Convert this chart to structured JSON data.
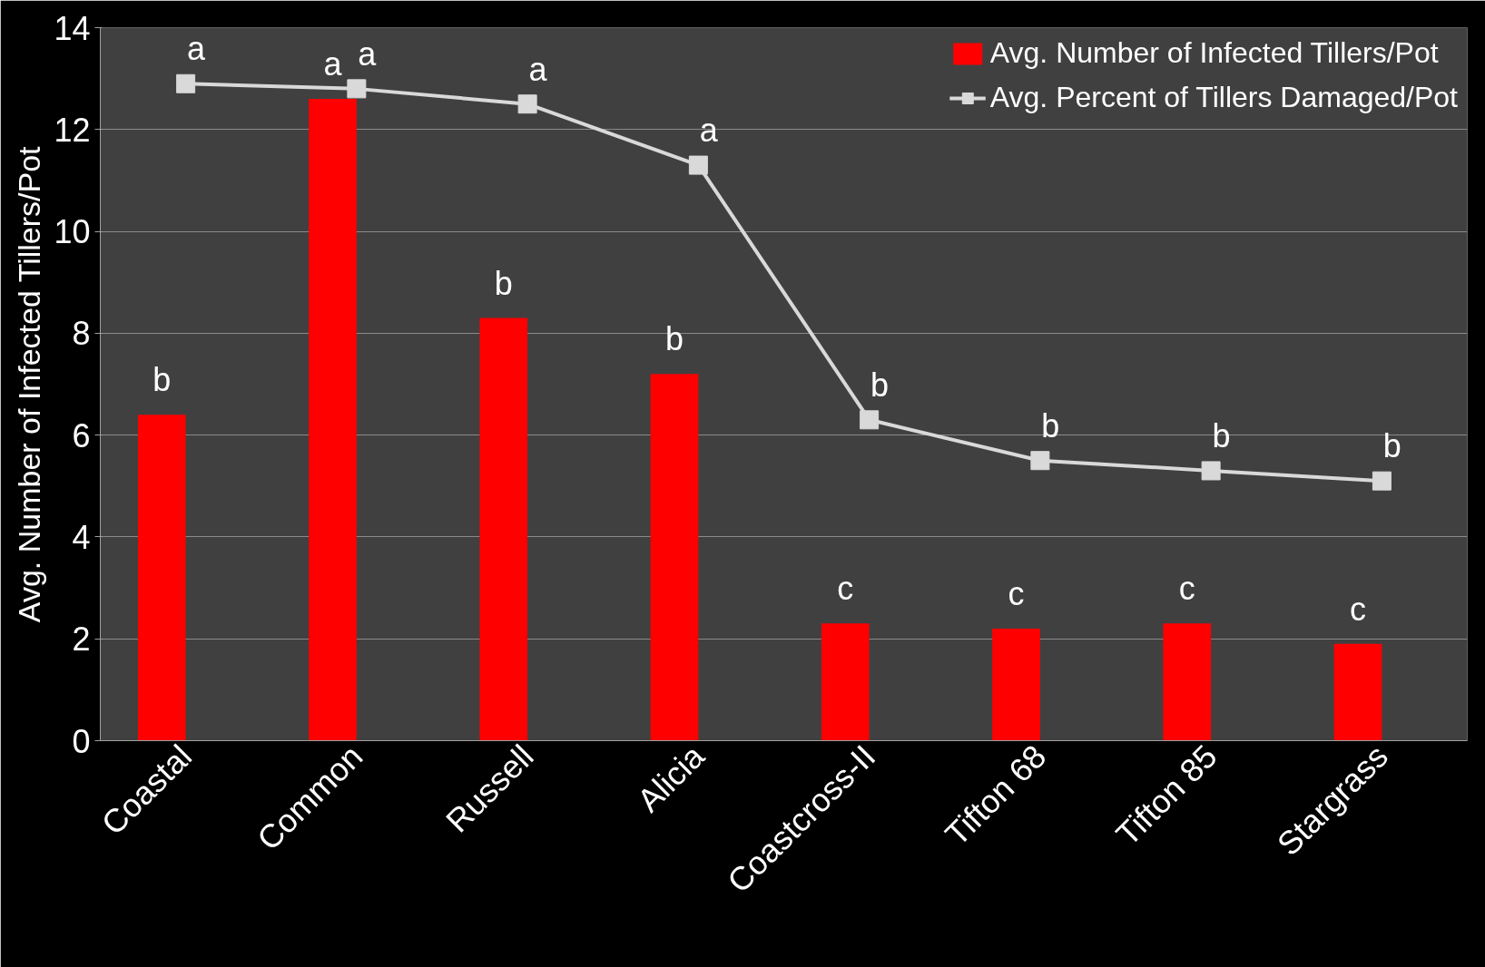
{
  "chart_data": {
    "type": "bar",
    "ylabel": "Avg. Number of Infected Tillers/Pot",
    "categories": [
      "Coastal",
      "Common",
      "Russell",
      "Alicia",
      "Coastcross-II",
      "Tifton 68",
      "Tifton 85",
      "Stargrass"
    ],
    "series": [
      {
        "name": "Avg. Number of Infected Tillers/Pot",
        "color": "#ff0000",
        "values": [
          6.4,
          12.6,
          8.3,
          7.2,
          2.3,
          2.2,
          2.3,
          1.9
        ]
      },
      {
        "name": "Avg. Percent of Tillers Damaged/Pot",
        "type": "line",
        "color": "#d9d9d9",
        "marker": "square",
        "values": [
          12.9,
          12.8,
          12.5,
          11.3,
          6.3,
          5.5,
          5.3,
          5.1
        ]
      }
    ],
    "ylim": [
      0,
      14
    ],
    "yticks": [
      0,
      2,
      4,
      6,
      8,
      10,
      12,
      14
    ],
    "grid": "y",
    "legend": "top right",
    "annotations": [
      {
        "text": "b",
        "x": "Coastal",
        "y": 6.4
      },
      {
        "text": "a",
        "x": "Common",
        "y": 12.6
      },
      {
        "text": "b",
        "x": "Russell",
        "y": 8.3
      },
      {
        "text": "b",
        "x": "Alicia",
        "y": 7.2
      },
      {
        "text": "c",
        "x": "Coastcross-II",
        "y": 2.3
      },
      {
        "text": "c",
        "x": "Tifton 68",
        "y": 2.2
      },
      {
        "text": "c",
        "x": "Tifton 85",
        "y": 2.3
      },
      {
        "text": "c",
        "x": "Stargrass",
        "y": 1.9
      },
      {
        "text": "a",
        "x": "Coastal",
        "y": 12.9
      },
      {
        "text": "a",
        "x": "Common",
        "y": 12.8
      },
      {
        "text": "a",
        "x": "Russell",
        "y": 12.5
      },
      {
        "text": "a",
        "x": "Alicia",
        "y": 11.3
      },
      {
        "text": "b",
        "x": "Coastcross-II",
        "y": 6.3
      },
      {
        "text": "b",
        "x": "Tifton 68",
        "y": 5.5
      },
      {
        "text": "b",
        "x": "Tifton 85",
        "y": 5.3
      },
      {
        "text": "b",
        "x": "Stargrass",
        "y": 5.1
      }
    ]
  }
}
